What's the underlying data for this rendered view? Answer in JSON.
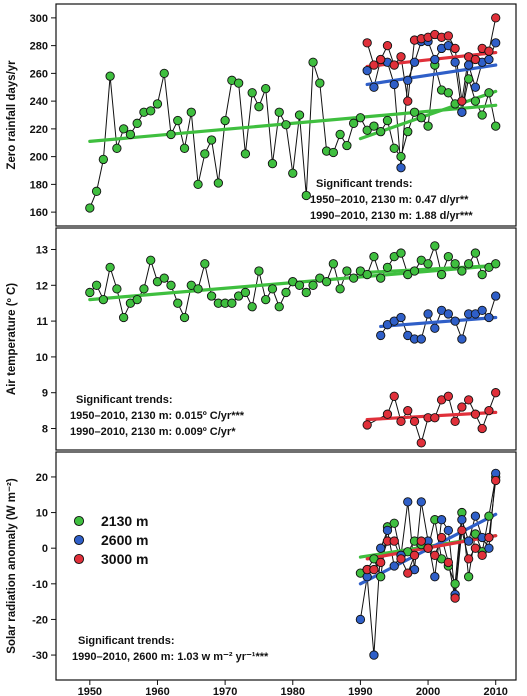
{
  "colors": {
    "green": "#3fbf3f",
    "blue": "#2f5fc8",
    "red": "#e0303a",
    "outline": "#111111"
  },
  "x_axis": {
    "ticks": [
      1950,
      1960,
      1970,
      1980,
      1990,
      2000,
      2010
    ]
  },
  "legend": [
    {
      "name": "2130 m",
      "color": "green"
    },
    {
      "name": "2600 m",
      "color": "blue"
    },
    {
      "name": "3000 m",
      "color": "red"
    }
  ],
  "chart_data": [
    {
      "type": "line",
      "ylabel": "Zero rainfall days/yr",
      "ylim": [
        150,
        310
      ],
      "yticks": [
        160,
        180,
        200,
        220,
        240,
        260,
        280,
        300
      ],
      "annotation": [
        "Significant trends:",
        "1950–2010, 2130 m: 0.47  d/yr**",
        "1990–2010, 2130 m: 1.88  d/yr***"
      ],
      "series": [
        {
          "name": "2130 m",
          "color": "green",
          "x": [
            1950,
            1951,
            1952,
            1953,
            1954,
            1955,
            1956,
            1957,
            1958,
            1959,
            1960,
            1961,
            1962,
            1963,
            1964,
            1965,
            1966,
            1967,
            1968,
            1969,
            1970,
            1971,
            1972,
            1973,
            1974,
            1975,
            1976,
            1977,
            1978,
            1979,
            1980,
            1981,
            1982,
            1983,
            1984,
            1985,
            1986,
            1987,
            1988,
            1989,
            1990,
            1991,
            1992,
            1993,
            1994,
            1995,
            1996,
            1997,
            1998,
            1999,
            2000,
            2001,
            2002,
            2003,
            2004,
            2005,
            2006,
            2007,
            2008,
            2009,
            2010
          ],
          "values": [
            163,
            175,
            198,
            258,
            206,
            220,
            216,
            224,
            232,
            233,
            238,
            260,
            216,
            226,
            206,
            232,
            180,
            202,
            212,
            181,
            226,
            255,
            253,
            202,
            246,
            236,
            249,
            195,
            232,
            223,
            188,
            230,
            172,
            268,
            253,
            204,
            203,
            216,
            208,
            224,
            228,
            219,
            222,
            218,
            226,
            206,
            200,
            218,
            232,
            228,
            222,
            266,
            248,
            246,
            238,
            232,
            256,
            240,
            230,
            246,
            222
          ],
          "trend": {
            "x": [
              1950,
              2010
            ],
            "y": [
              211,
              237
            ]
          },
          "trend2": {
            "x": [
              1990,
              2010
            ],
            "y": [
              213,
              247
            ]
          }
        },
        {
          "name": "2600 m",
          "color": "blue",
          "x": [
            1991,
            1992,
            1993,
            1994,
            1995,
            1996,
            1997,
            1998,
            1999,
            2000,
            2001,
            2002,
            2003,
            2004,
            2005,
            2006,
            2007,
            2008,
            2009,
            2010
          ],
          "values": [
            262,
            250,
            270,
            268,
            252,
            192,
            255,
            268,
            283,
            283,
            270,
            278,
            280,
            268,
            232,
            266,
            250,
            268,
            270,
            282
          ],
          "trend": {
            "x": [
              1991,
              2010
            ],
            "y": [
              252,
              266
            ]
          }
        },
        {
          "name": "3000 m",
          "color": "red",
          "x": [
            1991,
            1992,
            1993,
            1994,
            1995,
            1996,
            1997,
            1998,
            1999,
            2000,
            2001,
            2002,
            2003,
            2004,
            2005,
            2006,
            2007,
            2008,
            2009,
            2010
          ],
          "values": [
            282,
            266,
            270,
            280,
            266,
            272,
            240,
            284,
            285,
            286,
            288,
            286,
            287,
            278,
            240,
            272,
            270,
            278,
            276,
            300
          ],
          "trend": {
            "x": [
              1991,
              2010
            ],
            "y": [
              265,
              275
            ]
          }
        }
      ]
    },
    {
      "type": "line",
      "ylabel": "Air temperature (º C)",
      "ylim": [
        7.4,
        13.6
      ],
      "yticks": [
        8,
        9,
        10,
        11,
        12,
        13
      ],
      "annotation": [
        "Significant trends:",
        "1950–2010, 2130 m: 0.015º C/yr***",
        "1990–2010, 2130 m: 0.009º C/yr*"
      ],
      "series": [
        {
          "name": "2130 m",
          "color": "green",
          "x": [
            1950,
            1951,
            1952,
            1953,
            1954,
            1955,
            1956,
            1957,
            1958,
            1959,
            1960,
            1961,
            1962,
            1963,
            1964,
            1965,
            1966,
            1967,
            1968,
            1969,
            1970,
            1971,
            1972,
            1973,
            1974,
            1975,
            1976,
            1977,
            1978,
            1979,
            1980,
            1981,
            1982,
            1983,
            1984,
            1985,
            1986,
            1987,
            1988,
            1989,
            1990,
            1991,
            1992,
            1993,
            1994,
            1995,
            1996,
            1997,
            1998,
            1999,
            2000,
            2001,
            2002,
            2003,
            2004,
            2005,
            2006,
            2007,
            2008,
            2009,
            2010
          ],
          "values": [
            11.8,
            12.0,
            11.6,
            12.5,
            11.9,
            11.1,
            11.5,
            11.6,
            11.9,
            12.7,
            12.1,
            12.2,
            12.0,
            11.5,
            11.1,
            12.0,
            11.9,
            12.6,
            11.7,
            11.5,
            11.5,
            11.5,
            11.7,
            11.8,
            11.4,
            12.4,
            11.6,
            11.9,
            11.4,
            11.8,
            12.1,
            12.0,
            11.8,
            12.0,
            12.2,
            12.1,
            12.6,
            11.9,
            12.4,
            12.2,
            12.4,
            12.3,
            12.8,
            12.2,
            12.5,
            12.8,
            12.9,
            12.3,
            12.4,
            12.7,
            12.6,
            13.1,
            12.3,
            12.8,
            12.6,
            12.4,
            12.6,
            12.9,
            12.3,
            12.5,
            12.6
          ],
          "trend": {
            "x": [
              1950,
              2010
            ],
            "y": [
              11.6,
              12.55
            ]
          },
          "trend2": {
            "x": [
              1990,
              2010
            ],
            "y": [
              12.35,
              12.55
            ]
          }
        },
        {
          "name": "2600 m",
          "color": "blue",
          "x": [
            1993,
            1994,
            1995,
            1996,
            1997,
            1998,
            1999,
            2000,
            2001,
            2002,
            2003,
            2004,
            2005,
            2006,
            2007,
            2008,
            2009,
            2010
          ],
          "values": [
            10.6,
            10.9,
            11.0,
            11.1,
            10.6,
            10.5,
            10.5,
            11.2,
            10.8,
            11.3,
            11.2,
            11.0,
            10.5,
            11.2,
            11.2,
            11.3,
            11.1,
            11.7
          ],
          "trend": {
            "x": [
              1993,
              2010
            ],
            "y": [
              10.85,
              11.1
            ]
          }
        },
        {
          "name": "3000 m",
          "color": "red",
          "x": [
            1991,
            1994,
            1995,
            1996,
            1997,
            1998,
            1999,
            2000,
            2001,
            2002,
            2003,
            2004,
            2005,
            2006,
            2007,
            2008,
            2009,
            2010
          ],
          "values": [
            8.1,
            8.4,
            8.9,
            8.2,
            8.5,
            8.2,
            7.6,
            8.3,
            8.3,
            8.8,
            8.9,
            8.2,
            8.6,
            8.8,
            8.4,
            8.0,
            8.5,
            9.0
          ],
          "trend": {
            "x": [
              1991,
              2010
            ],
            "y": [
              8.25,
              8.45
            ]
          }
        }
      ]
    },
    {
      "type": "line",
      "ylabel": "Solar radiation anomaly (W m⁻²)",
      "ylim": [
        -37,
        27
      ],
      "yticks": [
        -30,
        -20,
        -10,
        0,
        10,
        20
      ],
      "annotation": [
        "Significant trends:",
        "1990–2010, 2600 m: 1.03  w m⁻² yr⁻¹***"
      ],
      "series": [
        {
          "name": "2130 m",
          "color": "green",
          "x": [
            1990,
            1991,
            1992,
            1993,
            1994,
            1995,
            1996,
            1997,
            1998,
            1999,
            2000,
            2001,
            2002,
            2003,
            2004,
            2005,
            2006,
            2007,
            2008,
            2009,
            2010
          ],
          "values": [
            -7,
            -6,
            -3,
            -8,
            6,
            7,
            -2,
            -1,
            2,
            1,
            0,
            8,
            -3,
            -5,
            -10,
            10,
            -8,
            4,
            -1,
            9,
            20
          ],
          "trend": {
            "x": [
              1990,
              2010
            ],
            "y": [
              -2.5,
              3.5
            ]
          }
        },
        {
          "name": "2600 m",
          "color": "blue",
          "x": [
            1990,
            1991,
            1992,
            1993,
            1994,
            1995,
            1996,
            1997,
            1998,
            1999,
            2000,
            2001,
            2002,
            2003,
            2004,
            2005,
            2006,
            2007,
            2008,
            2009,
            2010
          ],
          "values": [
            -20,
            -8,
            -30,
            0,
            5,
            -5,
            -2,
            13,
            -6,
            13,
            2,
            -8,
            8,
            5,
            -13,
            8,
            2,
            9,
            3,
            0,
            21
          ],
          "trend": {
            "x": [
              1990,
              2010
            ],
            "y": [
              -10,
              9.5
            ]
          }
        },
        {
          "name": "3000 m",
          "color": "red",
          "x": [
            1991,
            1992,
            1993,
            1994,
            1995,
            1996,
            1997,
            1998,
            1999,
            2000,
            2001,
            2002,
            2003,
            2004,
            2005,
            2006,
            2007,
            2008,
            2009,
            2010
          ],
          "values": [
            -6,
            -6,
            -4,
            2,
            2,
            -3,
            -7,
            -2,
            2,
            0,
            -2,
            3,
            -4,
            -14,
            5,
            -3,
            0,
            -2,
            3,
            19
          ],
          "trend": {
            "x": [
              1991,
              2010
            ],
            "y": [
              -3,
              3.5
            ]
          }
        }
      ]
    }
  ]
}
